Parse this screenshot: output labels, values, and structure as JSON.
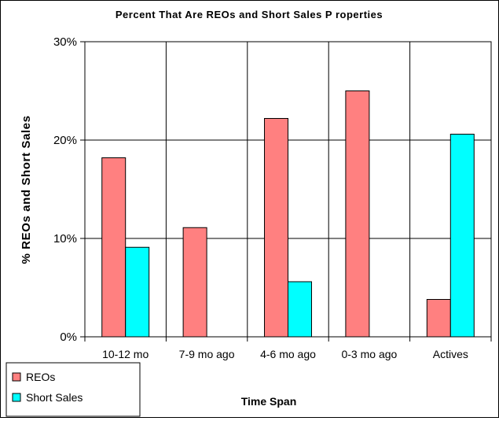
{
  "chart_data": {
    "type": "bar",
    "title": "Percent That Are REOs and Short Sales P roperties",
    "xlabel": "Time Span",
    "ylabel": "% REOs and Short Sales",
    "categories": [
      "10-12 mo",
      "7-9 mo ago",
      "4-6 mo ago",
      "0-3 mo ago",
      "Actives"
    ],
    "series": [
      {
        "name": "REOs",
        "values": [
          18.2,
          11.1,
          22.2,
          25.0,
          3.8
        ],
        "color": "#FF8080"
      },
      {
        "name": "Short Sales",
        "values": [
          9.1,
          0,
          5.6,
          0,
          20.6
        ],
        "color": "#00FFFF"
      }
    ],
    "ylim": [
      0,
      30
    ],
    "yticks": [
      "0%",
      "10%",
      "20%",
      "30%"
    ],
    "grid": true,
    "legend_position": "bottom-left"
  }
}
